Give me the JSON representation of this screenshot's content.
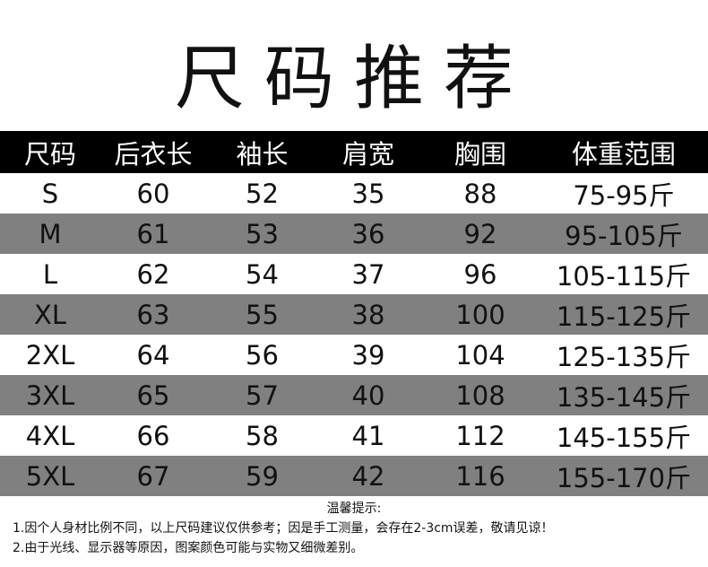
{
  "title": "尺码推荐",
  "table": {
    "headers": [
      "尺码",
      "后衣长",
      "袖长",
      "肩宽",
      "胸围",
      "体重范围"
    ],
    "rows": [
      [
        "S",
        "60",
        "52",
        "35",
        "88",
        "75-95斤"
      ],
      [
        "M",
        "61",
        "53",
        "36",
        "92",
        "95-105斤"
      ],
      [
        "L",
        "62",
        "54",
        "37",
        "96",
        "105-115斤"
      ],
      [
        "XL",
        "63",
        "55",
        "38",
        "100",
        "115-125斤"
      ],
      [
        "2XL",
        "64",
        "56",
        "39",
        "104",
        "125-135斤"
      ],
      [
        "3XL",
        "65",
        "57",
        "40",
        "108",
        "135-145斤"
      ],
      [
        "4XL",
        "66",
        "58",
        "41",
        "112",
        "145-155斤"
      ],
      [
        "5XL",
        "67",
        "59",
        "42",
        "116",
        "155-170斤"
      ]
    ],
    "colors": {
      "header_bg": "#000000",
      "alt_row_bg": "#808080",
      "row_bg": "#ffffff"
    }
  },
  "notes": {
    "title": "温馨提示:",
    "lines": [
      "1.因个人身材比例不同，以上尺码建议仅供参考；因是手工测量，会存在2-3cm误差，敬请见谅！",
      "2.由于光线、显示器等原因，图案颜色可能与实物又细微差别。"
    ]
  }
}
